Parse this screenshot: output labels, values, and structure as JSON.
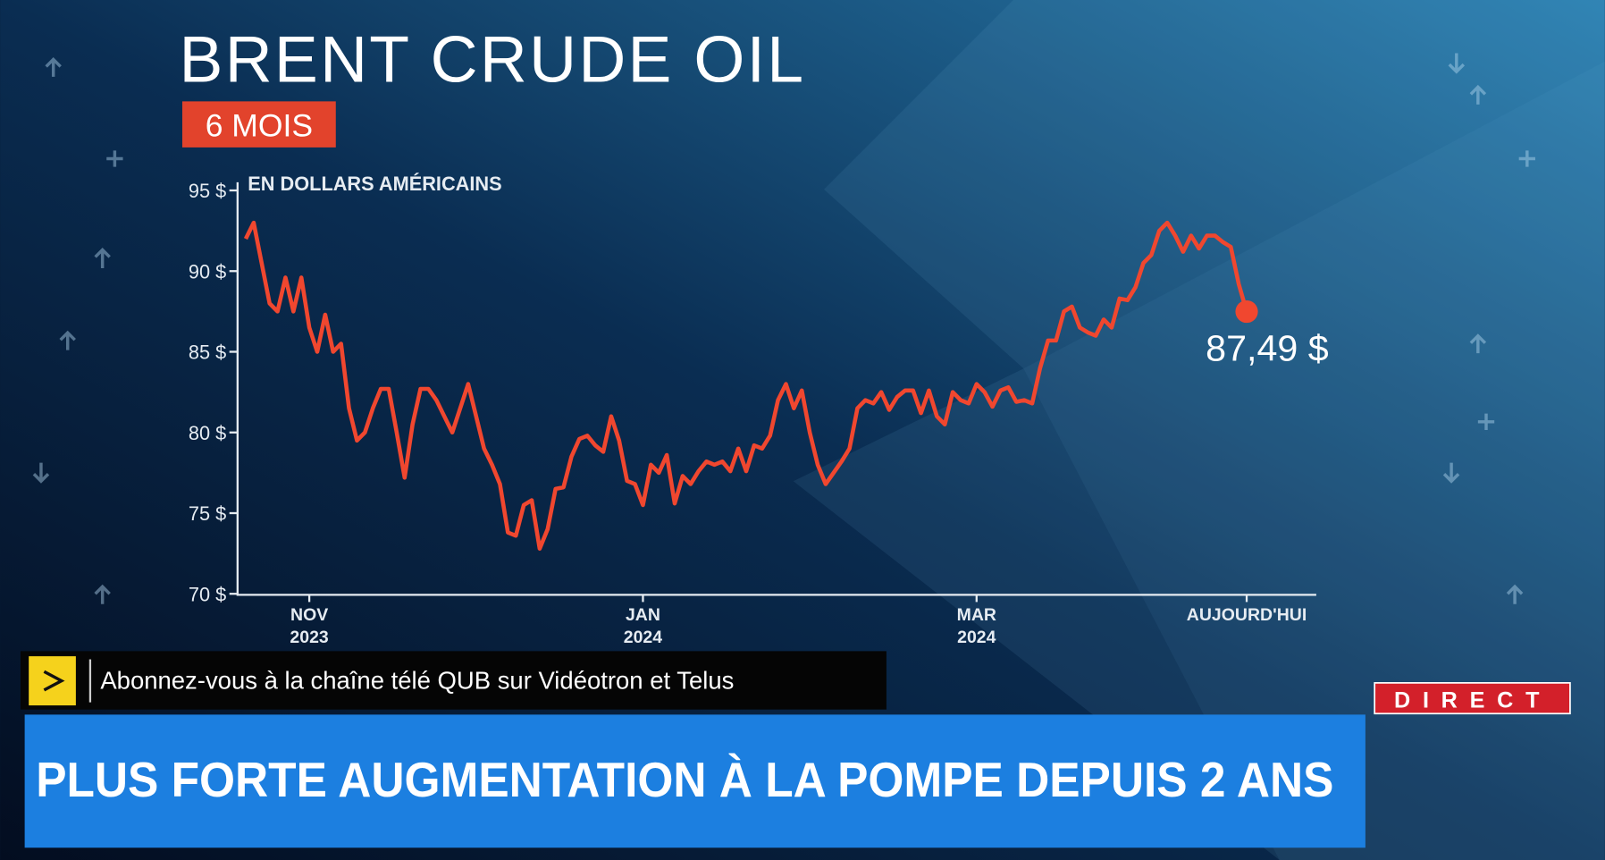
{
  "chart_data": {
    "type": "line",
    "title": "BRENT CRUDE OIL",
    "subtitle": "6 MOIS",
    "y_axis_label": "EN DOLLARS AMÉRICAINS",
    "color": "#f0472f",
    "ylim": [
      70,
      95
    ],
    "yticks": [
      {
        "value": 70,
        "label": "70 $"
      },
      {
        "value": 75,
        "label": "75 $"
      },
      {
        "value": 80,
        "label": "80 $"
      },
      {
        "value": 85,
        "label": "85 $"
      },
      {
        "value": 90,
        "label": "90 $"
      },
      {
        "value": 95,
        "label": "95 $"
      }
    ],
    "categories": [
      null,
      null,
      null,
      null,
      null,
      null,
      null,
      null,
      "NOV\n2023",
      null,
      null,
      null,
      null,
      null,
      null,
      null,
      null,
      null,
      null,
      null,
      null,
      null,
      null,
      null,
      null,
      null,
      null,
      null,
      null,
      null,
      null,
      null,
      null,
      null,
      null,
      null,
      null,
      null,
      null,
      null,
      null,
      null,
      null,
      null,
      null,
      null,
      null,
      null,
      null,
      null,
      "JAN\n2024",
      null,
      null,
      null,
      null,
      null,
      null,
      null,
      null,
      null,
      null,
      null,
      null,
      null,
      null,
      null,
      null,
      null,
      null,
      null,
      null,
      null,
      null,
      null,
      null,
      null,
      null,
      null,
      null,
      null,
      null,
      null,
      null,
      null,
      null,
      null,
      null,
      null,
      null,
      null,
      null,
      null,
      "MAR\n2024",
      null,
      null,
      null,
      null,
      null,
      null,
      null,
      null,
      null,
      null,
      null,
      null,
      null,
      null,
      null,
      null,
      null,
      null,
      null,
      null,
      null,
      null,
      null,
      null,
      null,
      null,
      null,
      null,
      null,
      null,
      null,
      null,
      null,
      "AUJOURD'HUI"
    ],
    "values": [
      92,
      93,
      90.5,
      88,
      87.5,
      89.6,
      87.5,
      89.6,
      86.5,
      85,
      87.3,
      85,
      85.5,
      81.5,
      79.5,
      80,
      81.5,
      82.7,
      82.7,
      80,
      77.2,
      80.5,
      82.7,
      82.7,
      82,
      81,
      80,
      81.5,
      83,
      81,
      79,
      78,
      76.8,
      73.8,
      73.6,
      75.5,
      75.8,
      72.8,
      74,
      76.5,
      76.6,
      78.5,
      79.6,
      79.8,
      79.2,
      78.8,
      81,
      79.5,
      77,
      76.8,
      75.5,
      78,
      77.5,
      78.6,
      75.6,
      77.3,
      76.8,
      77.6,
      78.2,
      78,
      78.2,
      77.6,
      79,
      77.6,
      79.2,
      79,
      79.8,
      82,
      83,
      81.5,
      82.6,
      80,
      78,
      76.8,
      77.5,
      78.2,
      79,
      81.5,
      82,
      81.8,
      82.5,
      81.4,
      82.2,
      82.6,
      82.6,
      81.2,
      82.6,
      81,
      80.5,
      82.5,
      82,
      81.8,
      83,
      82.5,
      81.6,
      82.6,
      82.8,
      81.9,
      82,
      81.8,
      84,
      85.7,
      85.7,
      87.5,
      87.8,
      86.5,
      86.2,
      86,
      87,
      86.5,
      88.3,
      88.2,
      89,
      90.5,
      91,
      92.5,
      93,
      92.2,
      91.2,
      92.2,
      91.4,
      92.2,
      92.2,
      91.8,
      91.5,
      89.2,
      87.49
    ],
    "annotations": [
      {
        "text": "87,49 $",
        "value": 87.49
      }
    ]
  },
  "ticker": "Abonnez-vous à la chaîne télé QUB sur Vidéotron et Telus",
  "headline": "PLUS FORTE AUGMENTATION À LA POMPE DEPUIS 2 ANS",
  "live_badge": "DIRECT"
}
